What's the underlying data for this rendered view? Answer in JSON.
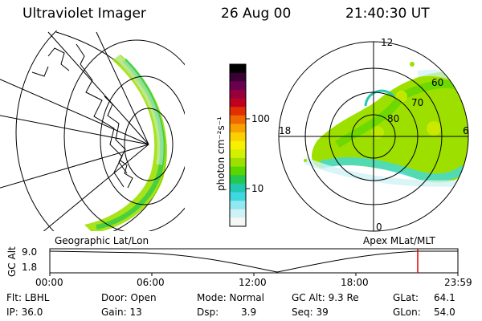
{
  "header": {
    "title": "Ultraviolet Imager",
    "date": "26 Aug 00",
    "time": "21:40:30 UT"
  },
  "colorbar": {
    "label": "photon cm⁻²s⁻¹",
    "ticks": [
      "100",
      "10"
    ],
    "colors": [
      "#000000",
      "#3a0033",
      "#6a0050",
      "#95003c",
      "#c00020",
      "#e03000",
      "#f06a00",
      "#f8a000",
      "#fad000",
      "#f7f000",
      "#d2f000",
      "#9de000",
      "#58d600",
      "#22c850",
      "#22c8b0",
      "#40d8e0",
      "#90e8f0",
      "#d0f2f5",
      "#f5f7f7"
    ]
  },
  "panels": {
    "left_caption": "Geographic Lat/Lon",
    "right_caption": "Apex MLat/MLT",
    "polar_labels": {
      "top": "12",
      "left": "18",
      "right": "6",
      "bottom": "0",
      "rings": [
        "60",
        "70",
        "80"
      ]
    }
  },
  "altitude_plot": {
    "ylabel": "GC Alt",
    "yticks": [
      "9.0",
      "1.8"
    ],
    "xticks": [
      "00:00",
      "06:00",
      "12:00",
      "18:00",
      "23:59"
    ],
    "marker_time": "21:40:30"
  },
  "info": {
    "flt": "Flt: LBHL",
    "ip": "IP: 36.0",
    "door": "Door: Open",
    "gain": "Gain: 13",
    "mode": "Mode: Normal",
    "dsp_label": "Dsp:",
    "dsp_value": "3.9",
    "gcalt": "GC Alt: 9.3 Re",
    "seq": "Seq: 39",
    "glat_label": "GLat:",
    "glat_value": "64.1",
    "glon_label": "GLon:",
    "glon_value": "54.0"
  }
}
